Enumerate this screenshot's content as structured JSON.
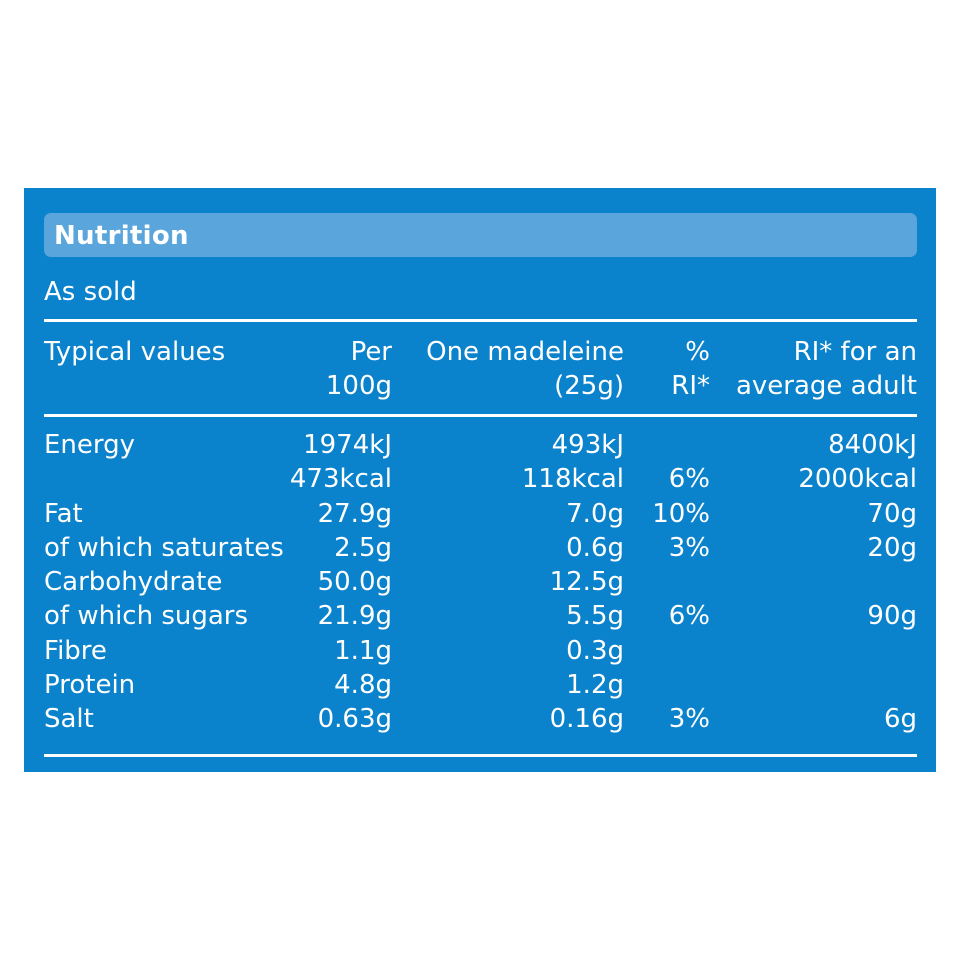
{
  "title": "Nutrition",
  "subtitle": "As sold",
  "colors": {
    "panel": "#0a82cc",
    "title_bar": "#5aa6dc",
    "text": "#ffffff"
  },
  "headers": {
    "label": "Typical values",
    "per100_line1": "Per",
    "per100_line2": "100g",
    "portion_line1": "One madeleine",
    "portion_line2": "(25g)",
    "ri_pct_line1": "%",
    "ri_pct_line2": "RI*",
    "ri_line1": "RI* for an",
    "ri_line2": "average adult"
  },
  "rows": [
    {
      "label": "Energy",
      "per100": "1974kJ",
      "portion": "493kJ",
      "ri_pct": "",
      "ri": "8400kJ"
    },
    {
      "label": "",
      "per100": "473kcal",
      "portion": "118kcal",
      "ri_pct": "6%",
      "ri": "2000kcal"
    },
    {
      "label": "Fat",
      "per100": "27.9g",
      "portion": "7.0g",
      "ri_pct": "10%",
      "ri": "70g"
    },
    {
      "label": "of which saturates",
      "per100": "2.5g",
      "portion": "0.6g",
      "ri_pct": "3%",
      "ri": "20g"
    },
    {
      "label": "Carbohydrate",
      "per100": "50.0g",
      "portion": "12.5g",
      "ri_pct": "",
      "ri": ""
    },
    {
      "label": "of which sugars",
      "per100": "21.9g",
      "portion": "5.5g",
      "ri_pct": "6%",
      "ri": "90g"
    },
    {
      "label": "Fibre",
      "per100": "1.1g",
      "portion": "0.3g",
      "ri_pct": "",
      "ri": ""
    },
    {
      "label": "Protein",
      "per100": "4.8g",
      "portion": "1.2g",
      "ri_pct": "",
      "ri": ""
    },
    {
      "label": "Salt",
      "per100": "0.63g",
      "portion": "0.16g",
      "ri_pct": "3%",
      "ri": "6g"
    }
  ]
}
